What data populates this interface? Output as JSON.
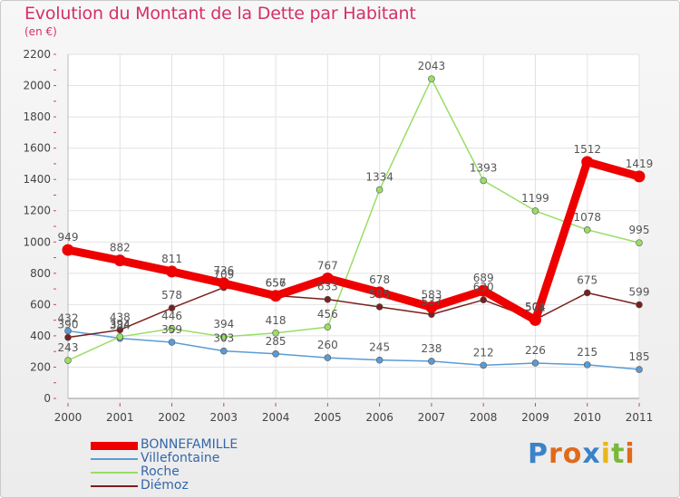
{
  "header": {
    "title": "Evolution du Montant de la Dette par Habitant",
    "subtitle": "(en €)"
  },
  "logo": {
    "letters": [
      {
        "ch": "P",
        "color": "#3a83c8"
      },
      {
        "ch": "r",
        "color": "#e06a1b"
      },
      {
        "ch": "o",
        "color": "#e06a1b"
      },
      {
        "ch": "x",
        "color": "#3a83c8"
      },
      {
        "ch": "i",
        "color": "#e8b61c"
      },
      {
        "ch": "t",
        "color": "#7ab83b"
      },
      {
        "ch": "i",
        "color": "#e06a1b"
      }
    ]
  },
  "chart_data": {
    "type": "line",
    "title": "Evolution du Montant de la Dette par Habitant",
    "subtitle": "(en €)",
    "xlabel": "",
    "ylabel": "",
    "x": [
      "2000",
      "2001",
      "2002",
      "2003",
      "2004",
      "2005",
      "2006",
      "2007",
      "2008",
      "2009",
      "2010",
      "2011"
    ],
    "ylim": [
      0,
      2200
    ],
    "yticks": [
      "0",
      "200",
      "400",
      "600",
      "800",
      "1000",
      "1200",
      "1400",
      "1600",
      "1800",
      "2000",
      "2200"
    ],
    "grid": true,
    "legend_position": "bottom-left",
    "series": [
      {
        "name": "BONNEFAMILLE",
        "color": "#ee0000",
        "thick": true,
        "values": [
          949,
          882,
          811,
          736,
          656,
          767,
          678,
          583,
          689,
          501,
          1512,
          1419
        ],
        "labels": [
          "949",
          "882",
          "811",
          "736",
          "656",
          "767",
          "678",
          "583",
          "689",
          "501",
          "1512",
          "1419"
        ]
      },
      {
        "name": "Villefontaine",
        "color": "#5b9bd5",
        "thick": false,
        "values": [
          432,
          384,
          359,
          303,
          285,
          260,
          245,
          238,
          212,
          226,
          215,
          185
        ],
        "labels": [
          "432",
          "384",
          "359",
          "303",
          "285",
          "260",
          "245",
          "238",
          "212",
          "226",
          "215",
          "185"
        ]
      },
      {
        "name": "Roche",
        "color": "#99dd66",
        "thick": false,
        "values": [
          243,
          394,
          446,
          394,
          418,
          456,
          1334,
          2043,
          1393,
          1199,
          1078,
          995
        ],
        "labels": [
          "243",
          "394",
          "446",
          "394",
          "418",
          "456",
          "1334",
          "2043",
          "1393",
          "1199",
          "1078",
          "995"
        ]
      },
      {
        "name": "Diémoz",
        "color": "#7a1f1f",
        "thick": false,
        "values": [
          390,
          438,
          578,
          709,
          657,
          633,
          585,
          537,
          630,
          504,
          675,
          599
        ],
        "labels": [
          "390",
          "438",
          "578",
          "709",
          "657",
          "633",
          "585",
          "537",
          "630",
          "504",
          "675",
          "599"
        ]
      }
    ]
  }
}
